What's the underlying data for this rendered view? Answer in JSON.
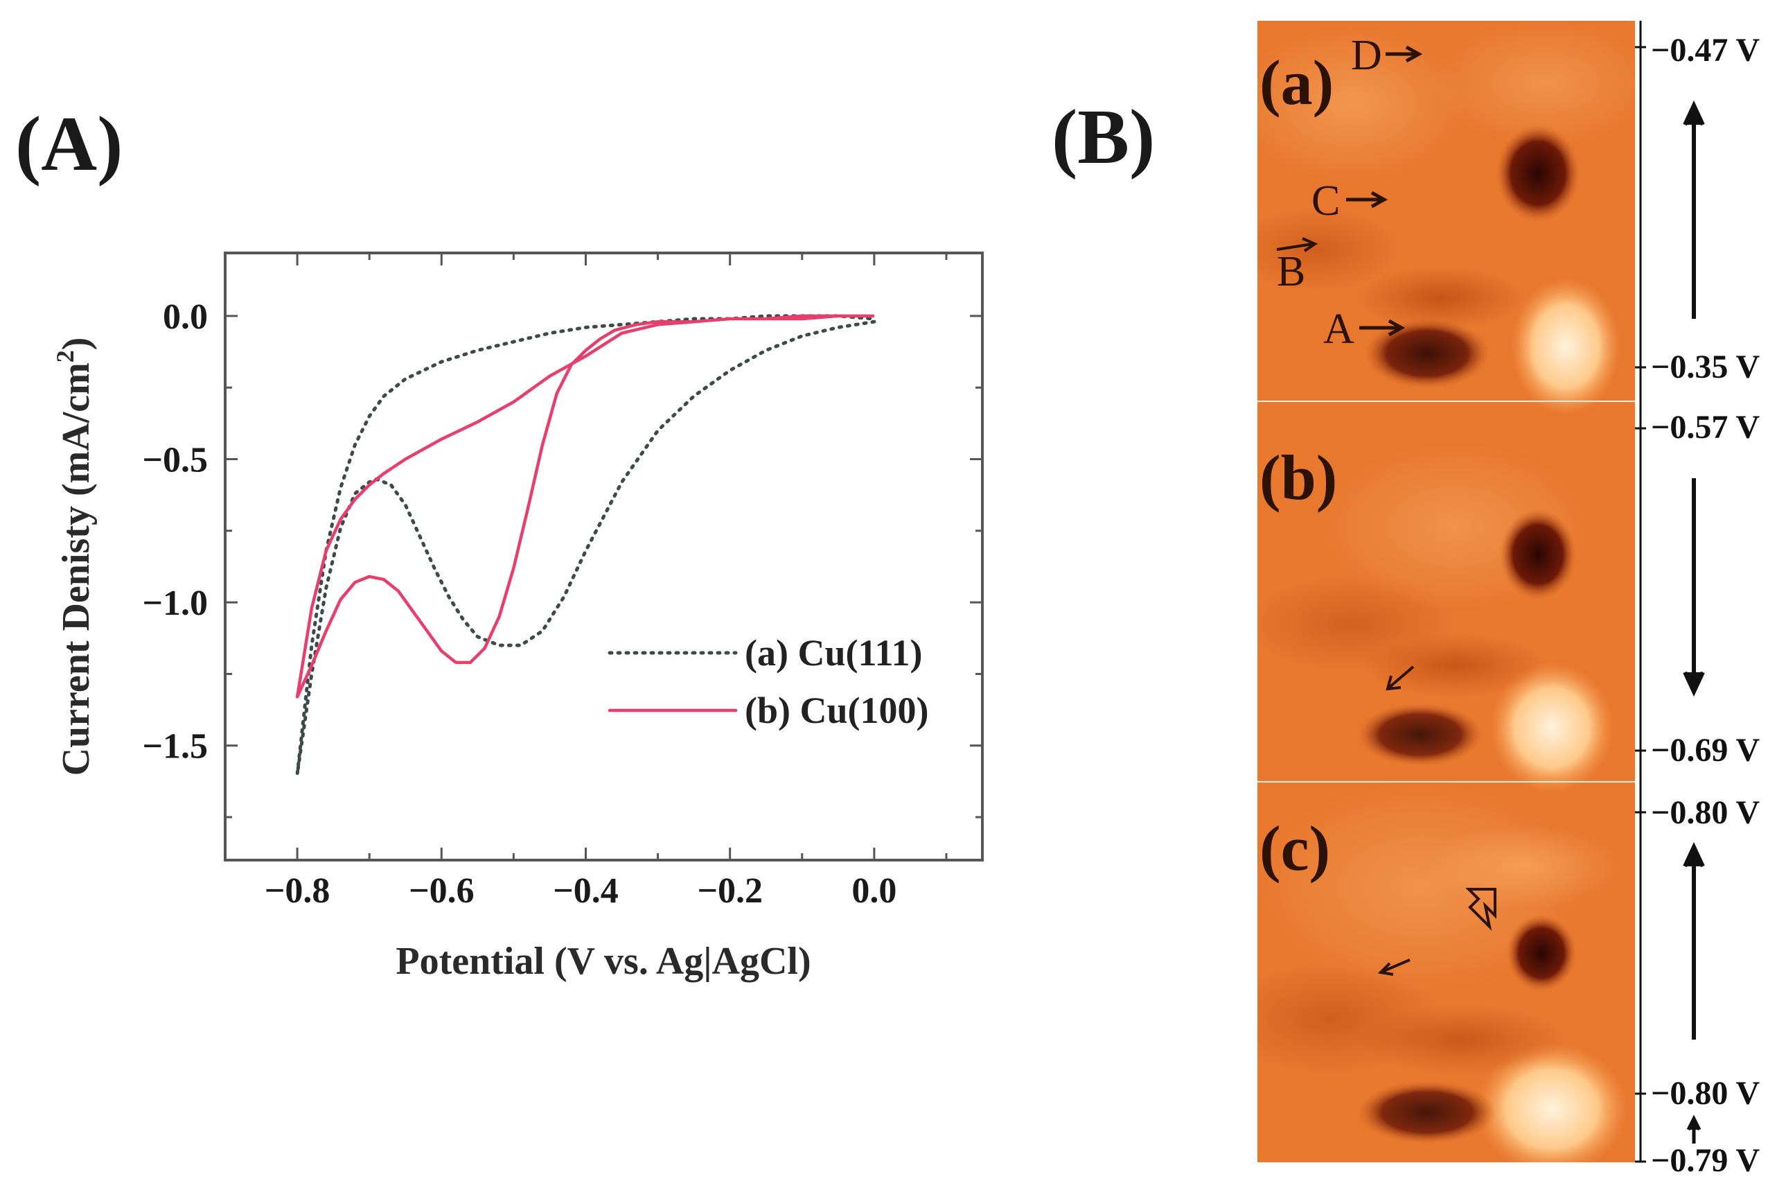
{
  "panel_a_label": "(A)",
  "panel_b_label": "(B)",
  "chart_data": {
    "type": "line",
    "title": "",
    "xlabel": "Potential (V vs. Ag|AgCl)",
    "ylabel": "Current Denisty (mA/cm",
    "ylabel_superscript": "2",
    "ylabel_close": ")",
    "xlim": [
      -0.9,
      0.15
    ],
    "ylim": [
      -1.9,
      0.22
    ],
    "xticks": [
      -0.8,
      -0.6,
      -0.4,
      -0.2,
      0.0
    ],
    "xtick_labels": [
      "−0.8",
      "−0.6",
      "−0.4",
      "−0.2",
      "0.0"
    ],
    "yticks": [
      0.0,
      -0.5,
      -1.0,
      -1.5
    ],
    "ytick_labels": [
      "0.0",
      "−0.5",
      "−1.0",
      "−1.5"
    ],
    "grid": false,
    "legend_position": "center-right",
    "series": [
      {
        "name": "(a) Cu(111)",
        "style": "dotted",
        "color": "#3d4a4a",
        "x": [
          0.0,
          -0.05,
          -0.1,
          -0.15,
          -0.2,
          -0.25,
          -0.3,
          -0.35,
          -0.4,
          -0.43,
          -0.46,
          -0.49,
          -0.52,
          -0.55,
          -0.57,
          -0.59,
          -0.61,
          -0.63,
          -0.65,
          -0.67,
          -0.69,
          -0.7,
          -0.72,
          -0.74,
          -0.76,
          -0.78,
          -0.8,
          -0.78,
          -0.76,
          -0.74,
          -0.72,
          -0.7,
          -0.68,
          -0.65,
          -0.6,
          -0.55,
          -0.5,
          -0.45,
          -0.4,
          -0.35,
          -0.3,
          -0.25,
          -0.2,
          -0.15,
          -0.1,
          -0.05,
          0.0
        ],
        "y": [
          -0.02,
          -0.04,
          -0.07,
          -0.12,
          -0.19,
          -0.28,
          -0.4,
          -0.58,
          -0.82,
          -0.98,
          -1.1,
          -1.15,
          -1.15,
          -1.12,
          -1.06,
          -0.98,
          -0.88,
          -0.77,
          -0.66,
          -0.59,
          -0.57,
          -0.58,
          -0.62,
          -0.74,
          -0.95,
          -1.25,
          -1.6,
          -1.15,
          -0.82,
          -0.6,
          -0.45,
          -0.35,
          -0.28,
          -0.22,
          -0.16,
          -0.12,
          -0.09,
          -0.06,
          -0.04,
          -0.03,
          -0.02,
          -0.01,
          -0.01,
          0.0,
          0.0,
          0.0,
          -0.01
        ]
      },
      {
        "name": "(b) Cu(100)",
        "style": "solid",
        "color": "#e83e6c",
        "x": [
          0.0,
          -0.05,
          -0.1,
          -0.15,
          -0.2,
          -0.25,
          -0.3,
          -0.33,
          -0.36,
          -0.38,
          -0.4,
          -0.42,
          -0.44,
          -0.46,
          -0.48,
          -0.5,
          -0.52,
          -0.54,
          -0.56,
          -0.58,
          -0.6,
          -0.62,
          -0.64,
          -0.66,
          -0.68,
          -0.7,
          -0.72,
          -0.74,
          -0.76,
          -0.78,
          -0.8,
          -0.78,
          -0.76,
          -0.74,
          -0.72,
          -0.7,
          -0.68,
          -0.65,
          -0.6,
          -0.55,
          -0.5,
          -0.45,
          -0.4,
          -0.35,
          -0.3,
          -0.25,
          -0.2,
          -0.15,
          -0.1,
          -0.05,
          0.0
        ],
        "y": [
          0.0,
          0.0,
          -0.01,
          -0.01,
          -0.01,
          -0.02,
          -0.02,
          -0.03,
          -0.05,
          -0.08,
          -0.12,
          -0.17,
          -0.27,
          -0.45,
          -0.67,
          -0.88,
          -1.05,
          -1.16,
          -1.21,
          -1.21,
          -1.17,
          -1.1,
          -1.03,
          -0.96,
          -0.92,
          -0.91,
          -0.93,
          -0.99,
          -1.1,
          -1.22,
          -1.33,
          -1.02,
          -0.82,
          -0.71,
          -0.64,
          -0.59,
          -0.55,
          -0.5,
          -0.43,
          -0.37,
          -0.3,
          -0.21,
          -0.14,
          -0.06,
          -0.03,
          -0.02,
          -0.01,
          -0.01,
          0.0,
          0.0,
          0.0
        ]
      }
    ]
  },
  "stm": {
    "frames": [
      {
        "label": "(a)",
        "v_top": "−0.47 V",
        "v_bottom": "−0.35 V",
        "arrow": "up"
      },
      {
        "label": "(b)",
        "v_top": "−0.57 V",
        "v_bottom": "−0.69 V",
        "arrow": "down"
      },
      {
        "label": "(c)",
        "v_top": "−0.80 V",
        "v_bottom": "−0.80 V",
        "arrow": "up",
        "v_extra": "−0.79 V"
      }
    ],
    "site_labels": [
      "A",
      "B",
      "C",
      "D"
    ]
  },
  "colors": {
    "stm_base": "#e8782e",
    "stm_light": "#ffd9a8",
    "stm_dark": "#3a0a04",
    "axis": "#555555"
  }
}
